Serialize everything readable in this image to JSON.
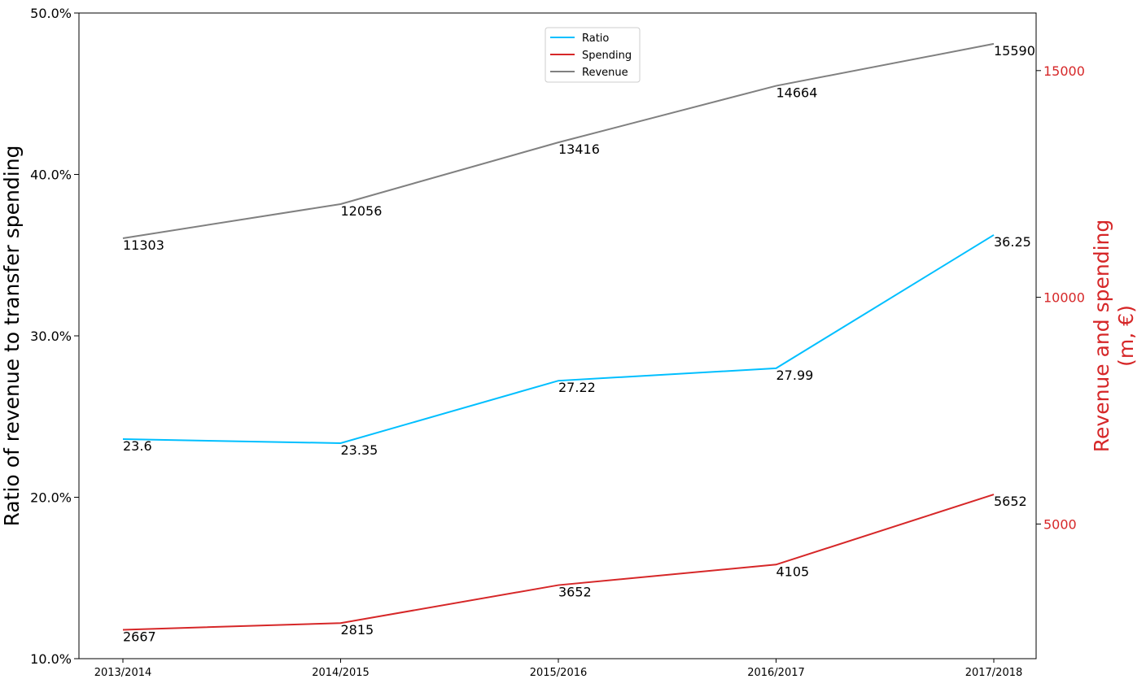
{
  "chart_data": {
    "type": "line",
    "categories": [
      "2013/2014",
      "2014/2015",
      "2015/2016",
      "2016/2017",
      "2017/2018"
    ],
    "left_axis": {
      "label": "Ratio of revenue to transfer spending",
      "ylim": [
        10,
        50
      ],
      "ticks": [
        10,
        20,
        30,
        40,
        50
      ],
      "tick_labels": [
        "10.0%",
        "20.0%",
        "30.0%",
        "40.0%",
        "50.0%"
      ]
    },
    "right_axis": {
      "label_line1": "Revenue and spending",
      "label_line2": "(m, €)",
      "ylim": [
        2030,
        16270
      ],
      "ticks": [
        5000,
        10000,
        15000
      ],
      "tick_labels": [
        "5000",
        "10000",
        "15000"
      ],
      "color": "#d62728"
    },
    "series": [
      {
        "name": "Ratio",
        "axis": "left",
        "color": "#00bfff",
        "values": [
          23.6,
          23.35,
          27.22,
          27.99,
          36.25
        ],
        "labels": [
          "23.6",
          "23.35",
          "27.22",
          "27.99",
          "36.25"
        ]
      },
      {
        "name": "Spending",
        "axis": "right",
        "color": "#d62728",
        "values": [
          2667,
          2815,
          3652,
          4105,
          5652
        ],
        "labels": [
          "2667",
          "2815",
          "3652",
          "4105",
          "5652"
        ]
      },
      {
        "name": "Revenue",
        "axis": "right",
        "color": "#808080",
        "values": [
          11303,
          12056,
          13416,
          14664,
          15590
        ],
        "labels": [
          "11303",
          "12056",
          "13416",
          "14664",
          "15590"
        ]
      }
    ],
    "legend_position": "top-center",
    "grid": false
  }
}
